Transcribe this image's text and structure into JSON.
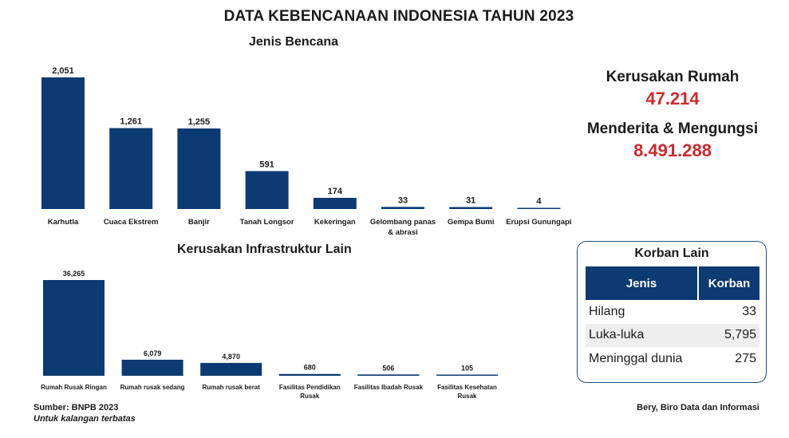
{
  "title": "DATA KEBENCANAAN INDONESIA TAHUN 2023",
  "chart_data": [
    {
      "type": "bar",
      "title": "Jenis Bencana",
      "categories": [
        "Karhutla",
        "Cuaca Ekstrem",
        "Banjir",
        "Tanah Longsor",
        "Kekeringan",
        "Gelombang panas\n& abrasi",
        "Gempa Bumi",
        "Erupsi Gunungapi"
      ],
      "values": [
        2051,
        1261,
        1255,
        591,
        174,
        33,
        31,
        4
      ],
      "value_labels": [
        "2,051",
        "1,261",
        "1,255",
        "591",
        "174",
        "33",
        "31",
        "4"
      ],
      "color": "#0c3a72",
      "grid": false
    },
    {
      "type": "bar",
      "title": "Kerusakan Infrastruktur Lain",
      "categories": [
        "Rumah Rusak Ringan",
        "Rumah rusak sedang",
        "Rumah rusak berat",
        "Fasilitas Pendidikan\nRusak",
        "Fasilitas Ibadah Rusak",
        "Fasilitas Kesehatan\nRusak"
      ],
      "values": [
        36265,
        6079,
        4870,
        680,
        506,
        105
      ],
      "value_labels": [
        "36,265",
        "6,079",
        "4,870",
        "680",
        "506",
        "105"
      ],
      "color": "#0c3a72",
      "grid": false
    }
  ],
  "summary": {
    "rumah_label": "Kerusakan Rumah",
    "rumah_value": "47.214",
    "mengungsi_label": "Menderita & Mengungsi",
    "mengungsi_value": "8.491.288",
    "value_color": "#d0282c"
  },
  "korban_lain": {
    "title": "Korban Lain",
    "headers": [
      "Jenis",
      "Korban"
    ],
    "rows": [
      {
        "jenis": "Hilang",
        "korban": "33"
      },
      {
        "jenis": "Luka-luka",
        "korban": "5,795"
      },
      {
        "jenis": "Meninggal dunia",
        "korban": "275"
      }
    ]
  },
  "footer": {
    "source": "Sumber: BNPB 2023",
    "note": "Untuk kalangan terbatas",
    "credit": "Bery, Biro Data dan Informasi"
  }
}
